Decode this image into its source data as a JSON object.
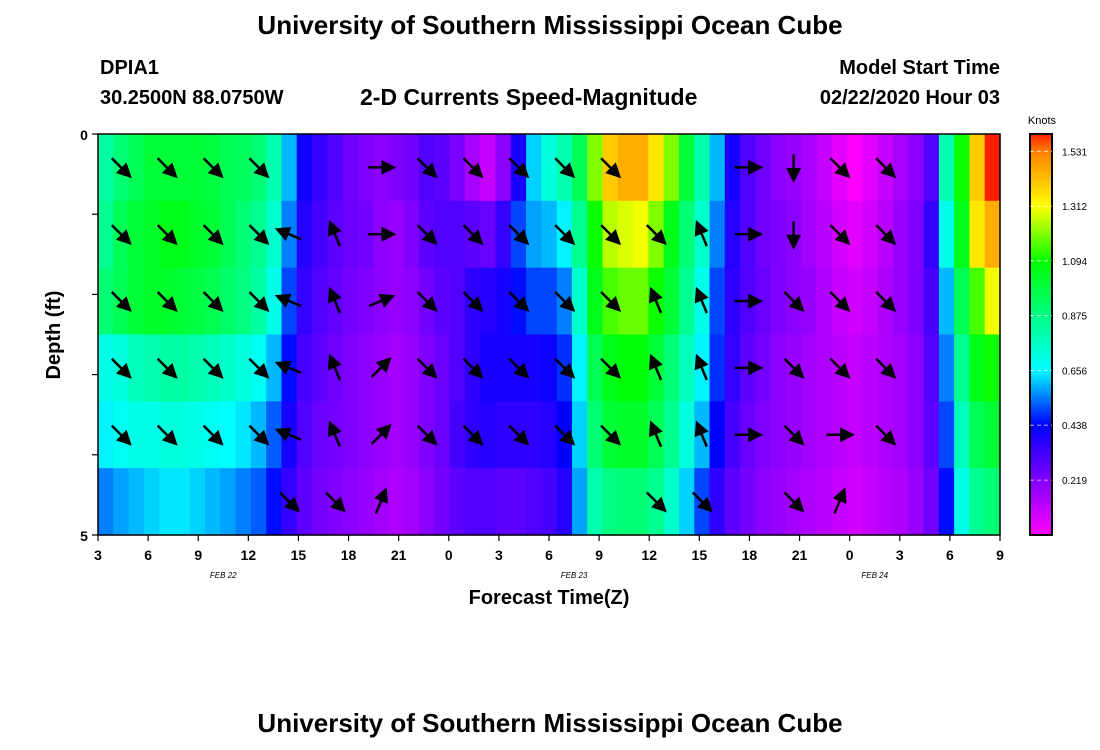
{
  "header": {
    "title": "University of Southern Mississippi Ocean Cube",
    "footer_title": "University of Southern Mississippi Ocean Cube",
    "station_id": "DPIA1",
    "coordinates": "30.2500N 88.0750W",
    "model_start_label": "Model Start Time",
    "model_start_value": "02/22/2020 Hour 03"
  },
  "chart_data": {
    "type": "heatmap",
    "title": "2-D Currents Speed-Magnitude",
    "xlabel": "Forecast Time(Z)",
    "ylabel": "Depth (ft)",
    "y_ticks": [
      "0",
      "5"
    ],
    "ylim": [
      0,
      5
    ],
    "x_tick_labels": [
      "3",
      "6",
      "9",
      "12",
      "15",
      "18",
      "21",
      "0",
      "3",
      "6",
      "9",
      "12",
      "15",
      "18",
      "21",
      "0",
      "3",
      "6",
      "9"
    ],
    "date_labels": [
      {
        "text": "FEB 22",
        "at_tick": 3
      },
      {
        "text": "FEB 23",
        "at_tick": 10
      },
      {
        "text": "FEB 24",
        "at_tick": 16
      }
    ],
    "colorbar": {
      "unit": "Knots",
      "tick_labels": [
        "1.531",
        "1.312",
        "1.094",
        "0.875",
        "0.656",
        "0.438",
        "0.219"
      ],
      "tick_values": [
        1.531,
        1.312,
        1.094,
        0.875,
        0.656,
        0.438,
        0.219
      ],
      "range": [
        0.0,
        1.6
      ],
      "stops": [
        {
          "v": 0.0,
          "color": "#ff00ff"
        },
        {
          "v": 0.22,
          "color": "#8000ff"
        },
        {
          "v": 0.44,
          "color": "#0000ff"
        },
        {
          "v": 0.66,
          "color": "#00ffff"
        },
        {
          "v": 0.88,
          "color": "#00ff80"
        },
        {
          "v": 1.09,
          "color": "#00ff00"
        },
        {
          "v": 1.31,
          "color": "#ffff00"
        },
        {
          "v": 1.53,
          "color": "#ff8000"
        },
        {
          "v": 1.6,
          "color": "#ff2000"
        }
      ]
    },
    "depth_layers": 5,
    "time_start_hour": 3,
    "time_step_hours": 1,
    "speed_rows": [
      [
        0.82,
        0.9,
        0.95,
        1.0,
        1.0,
        1.0,
        1.0,
        0.98,
        0.95,
        0.94,
        0.9,
        0.8,
        0.6,
        0.42,
        0.35,
        0.3,
        0.25,
        0.22,
        0.2,
        0.22,
        0.25,
        0.3,
        0.28,
        0.23,
        0.15,
        0.1,
        0.2,
        0.4,
        0.62,
        0.72,
        0.8,
        0.95,
        1.2,
        1.4,
        1.45,
        1.45,
        1.35,
        1.2,
        1.0,
        0.8,
        0.6,
        0.4,
        0.3,
        0.25,
        0.2,
        0.18,
        0.15,
        0.1,
        0.05,
        0.0,
        0.05,
        0.1,
        0.15,
        0.2,
        0.3,
        0.8,
        1.1,
        1.4,
        1.6
      ],
      [
        0.85,
        0.95,
        1.0,
        1.02,
        1.05,
        1.05,
        1.02,
        1.0,
        0.95,
        0.9,
        0.85,
        0.75,
        0.55,
        0.38,
        0.32,
        0.28,
        0.26,
        0.24,
        0.2,
        0.18,
        0.22,
        0.28,
        0.3,
        0.3,
        0.28,
        0.26,
        0.35,
        0.5,
        0.58,
        0.6,
        0.65,
        0.85,
        1.1,
        1.25,
        1.28,
        1.3,
        1.2,
        1.05,
        0.9,
        0.75,
        0.55,
        0.38,
        0.3,
        0.25,
        0.22,
        0.2,
        0.16,
        0.12,
        0.08,
        0.05,
        0.08,
        0.12,
        0.18,
        0.22,
        0.35,
        0.7,
        1.05,
        1.35,
        1.45
      ],
      [
        0.9,
        0.95,
        1.0,
        1.02,
        1.02,
        1.0,
        0.98,
        0.96,
        0.92,
        0.88,
        0.82,
        0.7,
        0.5,
        0.35,
        0.3,
        0.27,
        0.24,
        0.22,
        0.2,
        0.18,
        0.2,
        0.24,
        0.28,
        0.3,
        0.36,
        0.38,
        0.4,
        0.45,
        0.5,
        0.5,
        0.55,
        0.75,
        1.05,
        1.15,
        1.18,
        1.18,
        1.1,
        1.0,
        0.85,
        0.7,
        0.5,
        0.36,
        0.3,
        0.26,
        0.22,
        0.2,
        0.18,
        0.14,
        0.1,
        0.08,
        0.1,
        0.14,
        0.18,
        0.22,
        0.32,
        0.6,
        0.95,
        1.15,
        1.3
      ],
      [
        0.7,
        0.72,
        0.78,
        0.8,
        0.82,
        0.82,
        0.8,
        0.78,
        0.75,
        0.72,
        0.68,
        0.6,
        0.45,
        0.32,
        0.28,
        0.25,
        0.22,
        0.2,
        0.18,
        0.16,
        0.18,
        0.22,
        0.26,
        0.3,
        0.36,
        0.4,
        0.4,
        0.4,
        0.4,
        0.42,
        0.48,
        0.65,
        0.95,
        1.05,
        1.08,
        1.08,
        1.0,
        0.9,
        0.78,
        0.65,
        0.48,
        0.35,
        0.28,
        0.24,
        0.2,
        0.18,
        0.16,
        0.14,
        0.12,
        0.1,
        0.12,
        0.14,
        0.16,
        0.2,
        0.3,
        0.55,
        0.85,
        1.05,
        1.1
      ],
      [
        0.65,
        0.68,
        0.7,
        0.7,
        0.72,
        0.72,
        0.7,
        0.68,
        0.66,
        0.64,
        0.6,
        0.52,
        0.4,
        0.3,
        0.26,
        0.24,
        0.22,
        0.2,
        0.18,
        0.16,
        0.18,
        0.22,
        0.26,
        0.32,
        0.36,
        0.38,
        0.36,
        0.36,
        0.36,
        0.38,
        0.44,
        0.62,
        0.9,
        1.0,
        1.02,
        1.02,
        0.95,
        0.85,
        0.72,
        0.6,
        0.44,
        0.32,
        0.26,
        0.22,
        0.2,
        0.18,
        0.16,
        0.14,
        0.12,
        0.1,
        0.12,
        0.14,
        0.16,
        0.2,
        0.28,
        0.5,
        0.78,
        0.95,
        1.0
      ],
      [
        0.55,
        0.58,
        0.6,
        0.62,
        0.64,
        0.64,
        0.62,
        0.6,
        0.58,
        0.55,
        0.52,
        0.45,
        0.35,
        0.28,
        0.24,
        0.22,
        0.2,
        0.18,
        0.16,
        0.14,
        0.16,
        0.2,
        0.24,
        0.28,
        0.3,
        0.3,
        0.28,
        0.28,
        0.3,
        0.32,
        0.38,
        0.58,
        0.8,
        0.88,
        0.9,
        0.9,
        0.85,
        0.75,
        0.62,
        0.5,
        0.36,
        0.28,
        0.24,
        0.2,
        0.18,
        0.16,
        0.14,
        0.12,
        0.1,
        0.08,
        0.1,
        0.12,
        0.14,
        0.18,
        0.25,
        0.45,
        0.7,
        0.85,
        0.9
      ]
    ],
    "barbs": [
      {
        "t": 4,
        "rows": [
          [
            "se",
            1
          ],
          [
            "se",
            1
          ],
          [
            "se",
            1
          ],
          [
            "se",
            1
          ],
          [
            "se",
            1
          ],
          [
            "n",
            0
          ]
        ]
      },
      {
        "t": 7,
        "rows": [
          [
            "se",
            1
          ],
          [
            "se",
            1
          ],
          [
            "se",
            1
          ],
          [
            "se",
            1
          ],
          [
            "se",
            1
          ],
          [
            "n",
            0
          ]
        ]
      },
      {
        "t": 10,
        "rows": [
          [
            "se",
            1
          ],
          [
            "se",
            1
          ],
          [
            "se",
            1
          ],
          [
            "se",
            1
          ],
          [
            "se",
            1
          ],
          [
            "n",
            0
          ]
        ]
      },
      {
        "t": 13,
        "rows": [
          [
            "se",
            1
          ],
          [
            "se",
            1
          ],
          [
            "se",
            1
          ],
          [
            "se",
            1
          ],
          [
            "se",
            1
          ],
          [
            "n",
            0
          ]
        ]
      },
      {
        "t": 15,
        "rows": [
          [
            "n",
            0
          ],
          [
            "wnw",
            1
          ],
          [
            "wnw",
            1
          ],
          [
            "wnw",
            1
          ],
          [
            "wnw",
            1
          ],
          [
            "se",
            1
          ]
        ]
      },
      {
        "t": 18,
        "rows": [
          [
            "n",
            0
          ],
          [
            "nnw",
            1
          ],
          [
            "nnw",
            1
          ],
          [
            "nnw",
            1
          ],
          [
            "nnw",
            1
          ],
          [
            "se",
            1
          ]
        ]
      },
      {
        "t": 21,
        "rows": [
          [
            "e",
            1
          ],
          [
            "e",
            1
          ],
          [
            "ene",
            1
          ],
          [
            "ne",
            1
          ],
          [
            "ne",
            1
          ],
          [
            "nne",
            1
          ]
        ]
      },
      {
        "t": 24,
        "rows": [
          [
            "se",
            1
          ],
          [
            "se",
            1
          ],
          [
            "se",
            1
          ],
          [
            "se",
            1
          ],
          [
            "se",
            1
          ],
          [
            "n",
            0
          ]
        ]
      },
      {
        "t": 27,
        "rows": [
          [
            "se",
            1
          ],
          [
            "se",
            1
          ],
          [
            "se",
            1
          ],
          [
            "se",
            1
          ],
          [
            "se",
            1
          ],
          [
            "n",
            0
          ]
        ]
      },
      {
        "t": 30,
        "rows": [
          [
            "se",
            1
          ],
          [
            "se",
            1
          ],
          [
            "se",
            1
          ],
          [
            "se",
            1
          ],
          [
            "se",
            1
          ],
          [
            "n",
            0
          ]
        ]
      },
      {
        "t": 33,
        "rows": [
          [
            "se",
            1
          ],
          [
            "se",
            1
          ],
          [
            "se",
            1
          ],
          [
            "se",
            1
          ],
          [
            "se",
            1
          ],
          [
            "n",
            0
          ]
        ]
      },
      {
        "t": 36,
        "rows": [
          [
            "se",
            1
          ],
          [
            "se",
            1
          ],
          [
            "se",
            1
          ],
          [
            "se",
            1
          ],
          [
            "se",
            1
          ],
          [
            "n",
            0
          ]
        ]
      },
      {
        "t": 39,
        "rows": [
          [
            "n",
            0
          ],
          [
            "se",
            1
          ],
          [
            "nnw",
            1
          ],
          [
            "nnw",
            1
          ],
          [
            "nnw",
            1
          ],
          [
            "se",
            1
          ]
        ]
      },
      {
        "t": 42,
        "rows": [
          [
            "n",
            0
          ],
          [
            "nnw",
            1
          ],
          [
            "nnw",
            1
          ],
          [
            "nnw",
            1
          ],
          [
            "nnw",
            1
          ],
          [
            "se",
            1
          ]
        ]
      },
      {
        "t": 45,
        "rows": [
          [
            "e",
            1
          ],
          [
            "e",
            1
          ],
          [
            "e",
            1
          ],
          [
            "e",
            1
          ],
          [
            "e",
            1
          ],
          [
            "n",
            0
          ]
        ]
      },
      {
        "t": 48,
        "rows": [
          [
            "s",
            1
          ],
          [
            "s",
            1
          ],
          [
            "se",
            1
          ],
          [
            "se",
            1
          ],
          [
            "se",
            1
          ],
          [
            "se",
            1
          ]
        ]
      },
      {
        "t": 51,
        "rows": [
          [
            "se",
            1
          ],
          [
            "se",
            1
          ],
          [
            "se",
            1
          ],
          [
            "se",
            1
          ],
          [
            "e",
            1
          ],
          [
            "nne",
            1
          ]
        ]
      },
      {
        "t": 54,
        "rows": [
          [
            "se",
            1
          ],
          [
            "se",
            1
          ],
          [
            "se",
            1
          ],
          [
            "se",
            1
          ],
          [
            "se",
            1
          ],
          [
            "n",
            0
          ]
        ]
      }
    ]
  }
}
